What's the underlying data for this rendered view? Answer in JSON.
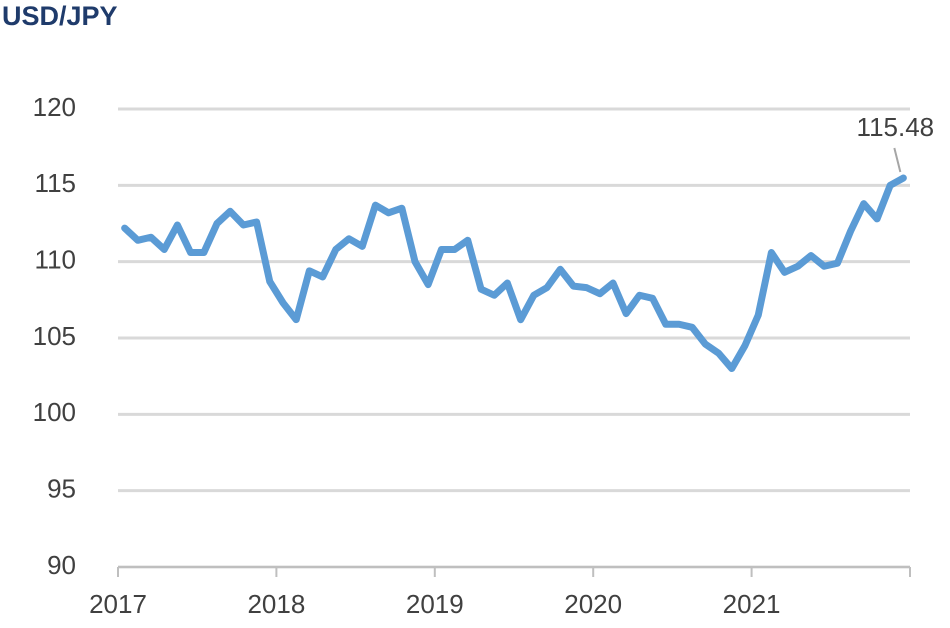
{
  "chart_data": {
    "type": "line",
    "title": "USD/JPY",
    "x": [
      2017.042,
      2017.125,
      2017.208,
      2017.292,
      2017.375,
      2017.458,
      2017.542,
      2017.625,
      2017.708,
      2017.792,
      2017.875,
      2017.958,
      2018.042,
      2018.125,
      2018.208,
      2018.292,
      2018.375,
      2018.458,
      2018.542,
      2018.625,
      2018.708,
      2018.792,
      2018.875,
      2018.958,
      2019.042,
      2019.125,
      2019.208,
      2019.292,
      2019.375,
      2019.458,
      2019.542,
      2019.625,
      2019.708,
      2019.792,
      2019.875,
      2019.958,
      2020.042,
      2020.125,
      2020.208,
      2020.292,
      2020.375,
      2020.458,
      2020.542,
      2020.625,
      2020.708,
      2020.792,
      2020.875,
      2020.958,
      2021.042,
      2021.125,
      2021.208,
      2021.292,
      2021.375,
      2021.458,
      2021.542,
      2021.625,
      2021.708,
      2021.792,
      2021.875,
      2021.958
    ],
    "values": [
      112.2,
      111.4,
      111.6,
      110.8,
      112.4,
      110.6,
      110.6,
      112.5,
      113.3,
      112.4,
      112.6,
      108.7,
      107.3,
      106.2,
      109.4,
      109.0,
      110.8,
      111.5,
      111.0,
      113.7,
      113.2,
      113.5,
      110.0,
      108.5,
      110.8,
      110.8,
      111.4,
      108.2,
      107.8,
      108.6,
      106.2,
      107.8,
      108.3,
      109.5,
      108.4,
      108.3,
      107.9,
      108.6,
      106.6,
      107.8,
      107.6,
      105.9,
      105.9,
      105.7,
      104.6,
      104.0,
      103.0,
      104.5,
      106.5,
      110.6,
      109.3,
      109.7,
      110.4,
      109.7,
      109.9,
      112.0,
      113.8,
      112.8,
      115.0,
      115.48
    ],
    "color": "#5b9bd5",
    "xlim": [
      2017,
      2022
    ],
    "xticks": [
      2017,
      2018,
      2019,
      2020,
      2021
    ],
    "ylim": [
      90,
      120
    ],
    "yticks": [
      90,
      95,
      100,
      105,
      110,
      115,
      120
    ],
    "grid": true
  }
}
